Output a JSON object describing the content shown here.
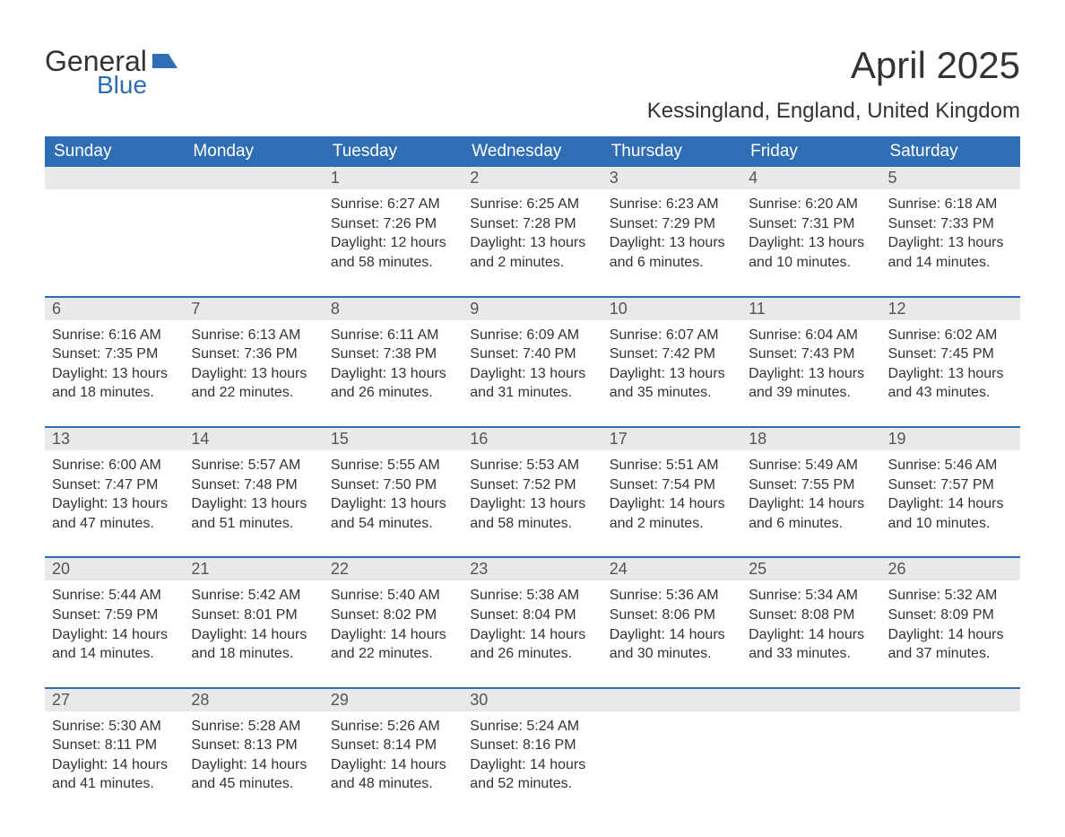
{
  "brand": {
    "word1": "General",
    "word2": "Blue",
    "icon_color": "#2f6eb5",
    "text_color": "#333333"
  },
  "title": "April 2025",
  "location": "Kessingland, England, United Kingdom",
  "colors": {
    "header_bg": "#2f6eb5",
    "header_text": "#ffffff",
    "strip_bg": "#e9e9e9",
    "body_text": "#333333",
    "rule": "#2f6eb5",
    "page_bg": "#ffffff"
  },
  "typography": {
    "title_fontsize": 42,
    "location_fontsize": 24,
    "weekday_fontsize": 19,
    "daynum_fontsize": 18,
    "body_fontsize": 16
  },
  "weekdays": [
    "Sunday",
    "Monday",
    "Tuesday",
    "Wednesday",
    "Thursday",
    "Friday",
    "Saturday"
  ],
  "weeks": [
    [
      {
        "n": "",
        "sunrise": "",
        "sunset": "",
        "daylight": ""
      },
      {
        "n": "",
        "sunrise": "",
        "sunset": "",
        "daylight": ""
      },
      {
        "n": "1",
        "sunrise": "Sunrise: 6:27 AM",
        "sunset": "Sunset: 7:26 PM",
        "daylight": "Daylight: 12 hours and 58 minutes."
      },
      {
        "n": "2",
        "sunrise": "Sunrise: 6:25 AM",
        "sunset": "Sunset: 7:28 PM",
        "daylight": "Daylight: 13 hours and 2 minutes."
      },
      {
        "n": "3",
        "sunrise": "Sunrise: 6:23 AM",
        "sunset": "Sunset: 7:29 PM",
        "daylight": "Daylight: 13 hours and 6 minutes."
      },
      {
        "n": "4",
        "sunrise": "Sunrise: 6:20 AM",
        "sunset": "Sunset: 7:31 PM",
        "daylight": "Daylight: 13 hours and 10 minutes."
      },
      {
        "n": "5",
        "sunrise": "Sunrise: 6:18 AM",
        "sunset": "Sunset: 7:33 PM",
        "daylight": "Daylight: 13 hours and 14 minutes."
      }
    ],
    [
      {
        "n": "6",
        "sunrise": "Sunrise: 6:16 AM",
        "sunset": "Sunset: 7:35 PM",
        "daylight": "Daylight: 13 hours and 18 minutes."
      },
      {
        "n": "7",
        "sunrise": "Sunrise: 6:13 AM",
        "sunset": "Sunset: 7:36 PM",
        "daylight": "Daylight: 13 hours and 22 minutes."
      },
      {
        "n": "8",
        "sunrise": "Sunrise: 6:11 AM",
        "sunset": "Sunset: 7:38 PM",
        "daylight": "Daylight: 13 hours and 26 minutes."
      },
      {
        "n": "9",
        "sunrise": "Sunrise: 6:09 AM",
        "sunset": "Sunset: 7:40 PM",
        "daylight": "Daylight: 13 hours and 31 minutes."
      },
      {
        "n": "10",
        "sunrise": "Sunrise: 6:07 AM",
        "sunset": "Sunset: 7:42 PM",
        "daylight": "Daylight: 13 hours and 35 minutes."
      },
      {
        "n": "11",
        "sunrise": "Sunrise: 6:04 AM",
        "sunset": "Sunset: 7:43 PM",
        "daylight": "Daylight: 13 hours and 39 minutes."
      },
      {
        "n": "12",
        "sunrise": "Sunrise: 6:02 AM",
        "sunset": "Sunset: 7:45 PM",
        "daylight": "Daylight: 13 hours and 43 minutes."
      }
    ],
    [
      {
        "n": "13",
        "sunrise": "Sunrise: 6:00 AM",
        "sunset": "Sunset: 7:47 PM",
        "daylight": "Daylight: 13 hours and 47 minutes."
      },
      {
        "n": "14",
        "sunrise": "Sunrise: 5:57 AM",
        "sunset": "Sunset: 7:48 PM",
        "daylight": "Daylight: 13 hours and 51 minutes."
      },
      {
        "n": "15",
        "sunrise": "Sunrise: 5:55 AM",
        "sunset": "Sunset: 7:50 PM",
        "daylight": "Daylight: 13 hours and 54 minutes."
      },
      {
        "n": "16",
        "sunrise": "Sunrise: 5:53 AM",
        "sunset": "Sunset: 7:52 PM",
        "daylight": "Daylight: 13 hours and 58 minutes."
      },
      {
        "n": "17",
        "sunrise": "Sunrise: 5:51 AM",
        "sunset": "Sunset: 7:54 PM",
        "daylight": "Daylight: 14 hours and 2 minutes."
      },
      {
        "n": "18",
        "sunrise": "Sunrise: 5:49 AM",
        "sunset": "Sunset: 7:55 PM",
        "daylight": "Daylight: 14 hours and 6 minutes."
      },
      {
        "n": "19",
        "sunrise": "Sunrise: 5:46 AM",
        "sunset": "Sunset: 7:57 PM",
        "daylight": "Daylight: 14 hours and 10 minutes."
      }
    ],
    [
      {
        "n": "20",
        "sunrise": "Sunrise: 5:44 AM",
        "sunset": "Sunset: 7:59 PM",
        "daylight": "Daylight: 14 hours and 14 minutes."
      },
      {
        "n": "21",
        "sunrise": "Sunrise: 5:42 AM",
        "sunset": "Sunset: 8:01 PM",
        "daylight": "Daylight: 14 hours and 18 minutes."
      },
      {
        "n": "22",
        "sunrise": "Sunrise: 5:40 AM",
        "sunset": "Sunset: 8:02 PM",
        "daylight": "Daylight: 14 hours and 22 minutes."
      },
      {
        "n": "23",
        "sunrise": "Sunrise: 5:38 AM",
        "sunset": "Sunset: 8:04 PM",
        "daylight": "Daylight: 14 hours and 26 minutes."
      },
      {
        "n": "24",
        "sunrise": "Sunrise: 5:36 AM",
        "sunset": "Sunset: 8:06 PM",
        "daylight": "Daylight: 14 hours and 30 minutes."
      },
      {
        "n": "25",
        "sunrise": "Sunrise: 5:34 AM",
        "sunset": "Sunset: 8:08 PM",
        "daylight": "Daylight: 14 hours and 33 minutes."
      },
      {
        "n": "26",
        "sunrise": "Sunrise: 5:32 AM",
        "sunset": "Sunset: 8:09 PM",
        "daylight": "Daylight: 14 hours and 37 minutes."
      }
    ],
    [
      {
        "n": "27",
        "sunrise": "Sunrise: 5:30 AM",
        "sunset": "Sunset: 8:11 PM",
        "daylight": "Daylight: 14 hours and 41 minutes."
      },
      {
        "n": "28",
        "sunrise": "Sunrise: 5:28 AM",
        "sunset": "Sunset: 8:13 PM",
        "daylight": "Daylight: 14 hours and 45 minutes."
      },
      {
        "n": "29",
        "sunrise": "Sunrise: 5:26 AM",
        "sunset": "Sunset: 8:14 PM",
        "daylight": "Daylight: 14 hours and 48 minutes."
      },
      {
        "n": "30",
        "sunrise": "Sunrise: 5:24 AM",
        "sunset": "Sunset: 8:16 PM",
        "daylight": "Daylight: 14 hours and 52 minutes."
      },
      {
        "n": "",
        "sunrise": "",
        "sunset": "",
        "daylight": ""
      },
      {
        "n": "",
        "sunrise": "",
        "sunset": "",
        "daylight": ""
      },
      {
        "n": "",
        "sunrise": "",
        "sunset": "",
        "daylight": ""
      }
    ]
  ]
}
